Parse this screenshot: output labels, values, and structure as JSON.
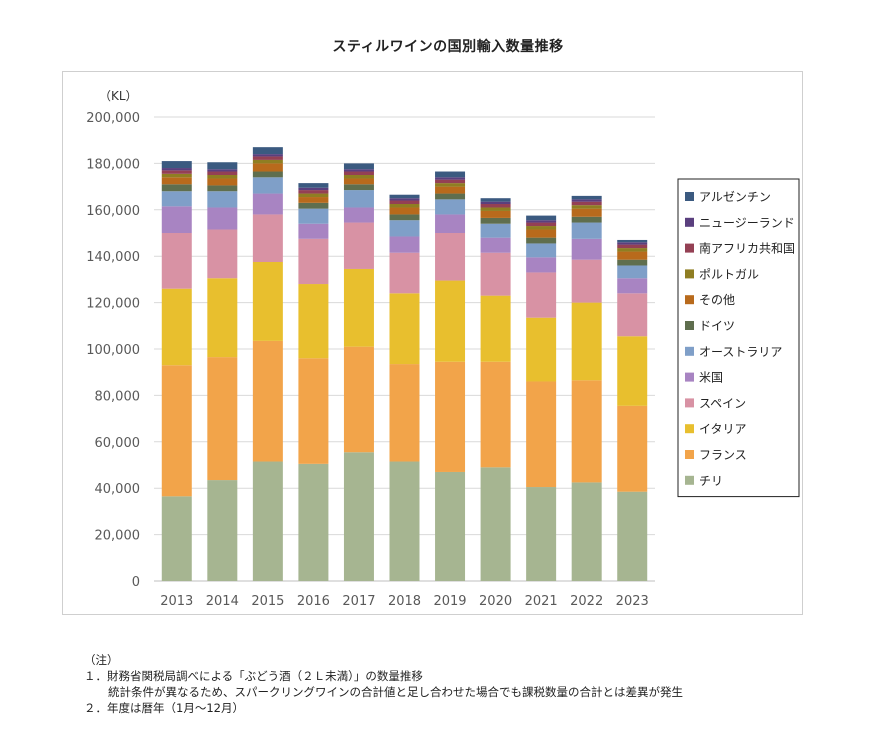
{
  "title": "スティルワインの国別輸入数量推移",
  "unit_label": "（KL）",
  "chart_data": {
    "type": "bar",
    "stacked": true,
    "title": "スティルワインの国別輸入数量推移",
    "ylabel": "（KL）",
    "ylim": [
      0,
      200000
    ],
    "ytick_step": 20000,
    "ytick_labels": [
      "0",
      "20,000",
      "40,000",
      "60,000",
      "80,000",
      "100,000",
      "120,000",
      "140,000",
      "160,000",
      "180,000",
      "200,000"
    ],
    "grid": true,
    "legend_position": "right",
    "categories": [
      "2013",
      "2014",
      "2015",
      "2016",
      "2017",
      "2018",
      "2019",
      "2020",
      "2021",
      "2022",
      "2023"
    ],
    "series": [
      {
        "name": "チリ",
        "color": "#a6b591",
        "values": [
          36500,
          43500,
          51500,
          50500,
          55500,
          51500,
          47000,
          49000,
          40500,
          42500,
          38500
        ]
      },
      {
        "name": "フランス",
        "color": "#f2a44a",
        "values": [
          56500,
          53000,
          52000,
          45500,
          45500,
          42000,
          47500,
          45500,
          45500,
          44000,
          37000
        ]
      },
      {
        "name": "イタリア",
        "color": "#e8bf2e",
        "values": [
          33000,
          34000,
          34000,
          32000,
          33500,
          30500,
          35000,
          28500,
          27500,
          33500,
          30000
        ]
      },
      {
        "name": "スペイン",
        "color": "#d892a4",
        "values": [
          24000,
          21000,
          20500,
          19500,
          20000,
          17500,
          20500,
          18500,
          19500,
          18500,
          18500
        ]
      },
      {
        "name": "米国",
        "color": "#a884c2",
        "values": [
          11500,
          9500,
          9000,
          6500,
          6500,
          7000,
          8000,
          6500,
          6500,
          9000,
          6500
        ]
      },
      {
        "name": "オーストラリア",
        "color": "#7f9fc8",
        "values": [
          6500,
          7000,
          7000,
          6500,
          7500,
          7000,
          6500,
          6000,
          6000,
          7000,
          5500
        ]
      },
      {
        "name": "ドイツ",
        "color": "#5f6e4e",
        "values": [
          3000,
          2500,
          2500,
          2500,
          2500,
          2500,
          2500,
          2500,
          2500,
          2500,
          2500
        ]
      },
      {
        "name": "その他",
        "color": "#b86a1c",
        "values": [
          3000,
          3000,
          3500,
          2500,
          2500,
          3000,
          3000,
          3000,
          3500,
          3500,
          3500
        ]
      },
      {
        "name": "ポルトガル",
        "color": "#8f7e22",
        "values": [
          1500,
          1500,
          1500,
          1500,
          1500,
          1500,
          1500,
          1500,
          1500,
          1500,
          1500
        ]
      },
      {
        "name": "南アフリカ共和国",
        "color": "#944054",
        "values": [
          1500,
          1500,
          1500,
          1500,
          1500,
          1500,
          1500,
          1500,
          1500,
          1500,
          1500
        ]
      },
      {
        "name": "ニュージーランド",
        "color": "#5a3f7e",
        "values": [
          1000,
          1000,
          1000,
          1000,
          1000,
          1000,
          1000,
          1000,
          1000,
          1000,
          1000
        ]
      },
      {
        "name": "アルゼンチン",
        "color": "#3b5a80",
        "values": [
          3000,
          3000,
          3000,
          2000,
          2500,
          1500,
          2500,
          1500,
          2000,
          1500,
          1000
        ]
      }
    ]
  },
  "notes": {
    "heading": "（注）",
    "item1": "１．財務省関税局調べによる「ぶどう酒（２Ｌ未満）」の数量推移",
    "item1_sub": "統計条件が異なるため、スパークリングワインの合計値と足し合わせた場合でも課税数量の合計とは差異が発生",
    "item2": "２．年度は暦年（1月～12月）"
  }
}
